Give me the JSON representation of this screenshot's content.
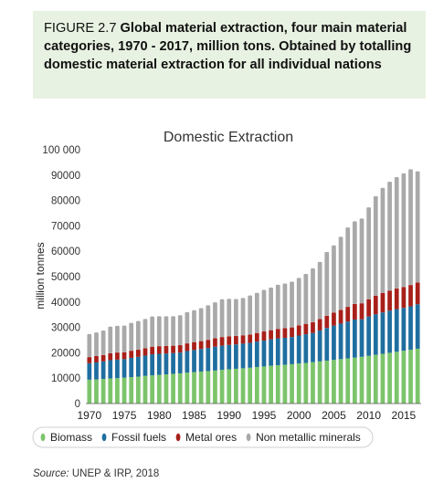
{
  "figure": {
    "label": "FIGURE 2.7",
    "title": "Global material extraction, four main material categories, 1970 - 2017, million tons. Obtained by totalling domestic material extraction for all individual nations"
  },
  "source": {
    "label": "Source:",
    "text": "UNEP & IRP, 2018"
  },
  "chart_data": {
    "type": "bar",
    "stacked": true,
    "title": "Domestic Extraction",
    "xlabel": "",
    "ylabel": "million tonnes",
    "ylim": [
      0,
      100000
    ],
    "y_ticks": [
      "0",
      "10000",
      "20000",
      "30000",
      "40000",
      "50000",
      "60000",
      "70000",
      "80000",
      "90000",
      "100 000"
    ],
    "y_tick_values": [
      0,
      10000,
      20000,
      30000,
      40000,
      50000,
      60000,
      70000,
      80000,
      90000,
      100000
    ],
    "x_tick_labels": [
      "1970",
      "1975",
      "1980",
      "1985",
      "1990",
      "1995",
      "2000",
      "2005",
      "2010",
      "2015"
    ],
    "categories": [
      1970,
      1971,
      1972,
      1973,
      1974,
      1975,
      1976,
      1977,
      1978,
      1979,
      1980,
      1981,
      1982,
      1983,
      1984,
      1985,
      1986,
      1987,
      1988,
      1989,
      1990,
      1991,
      1992,
      1993,
      1994,
      1995,
      1996,
      1997,
      1998,
      1999,
      2000,
      2001,
      2002,
      2003,
      2004,
      2005,
      2006,
      2007,
      2008,
      2009,
      2010,
      2011,
      2012,
      2013,
      2014,
      2015,
      2016,
      2017
    ],
    "grid": false,
    "legend_position": "bottom",
    "series": [
      {
        "name": "Biomass",
        "color": "#7cc46b",
        "values": [
          9400,
          9500,
          9700,
          9900,
          10000,
          10200,
          10400,
          10600,
          10900,
          11100,
          11300,
          11500,
          11700,
          11900,
          12200,
          12400,
          12600,
          12800,
          13000,
          13300,
          13500,
          13700,
          13900,
          14100,
          14400,
          14600,
          14900,
          15100,
          15300,
          15500,
          15800,
          16000,
          16300,
          16600,
          16900,
          17200,
          17500,
          17800,
          18100,
          18400,
          18800,
          19200,
          19600,
          20000,
          20400,
          20800,
          21200,
          21600
        ]
      },
      {
        "name": "Fossil fuels",
        "color": "#1f6ea0",
        "values": [
          6500,
          6700,
          6900,
          7200,
          7300,
          7300,
          7600,
          7800,
          8000,
          8300,
          8300,
          8200,
          8200,
          8200,
          8500,
          8700,
          8900,
          9100,
          9400,
          9500,
          9600,
          9600,
          9700,
          9800,
          10000,
          10200,
          10400,
          10600,
          10600,
          10700,
          11000,
          11300,
          11500,
          12200,
          12900,
          13500,
          14000,
          14500,
          15000,
          14800,
          15500,
          16000,
          16300,
          16600,
          16800,
          16900,
          17100,
          17500
        ]
      },
      {
        "name": "Metal ores",
        "color": "#a8201a",
        "values": [
          2400,
          2500,
          2500,
          2700,
          2800,
          2700,
          2800,
          2800,
          2900,
          3000,
          3000,
          3000,
          2900,
          2900,
          3000,
          3100,
          3100,
          3200,
          3300,
          3400,
          3400,
          3300,
          3300,
          3300,
          3400,
          3600,
          3600,
          3700,
          3800,
          3800,
          4000,
          4100,
          4200,
          4500,
          4800,
          5100,
          5400,
          5800,
          6100,
          6300,
          6800,
          7300,
          7700,
          7900,
          8100,
          8200,
          8400,
          8600
        ]
      },
      {
        "name": "Non metallic minerals",
        "color": "#a9a9a9",
        "values": [
          9100,
          9300,
          9700,
          10500,
          10500,
          10500,
          11000,
          11300,
          11500,
          11900,
          11800,
          11700,
          11600,
          11800,
          12300,
          12600,
          13000,
          13600,
          14200,
          14900,
          14800,
          14600,
          14700,
          15400,
          15800,
          16400,
          16800,
          17400,
          17600,
          18000,
          18700,
          19700,
          21300,
          22500,
          25100,
          26500,
          28800,
          31300,
          32600,
          33400,
          36200,
          39200,
          41400,
          42900,
          43900,
          44800,
          45600,
          43800
        ]
      }
    ]
  }
}
